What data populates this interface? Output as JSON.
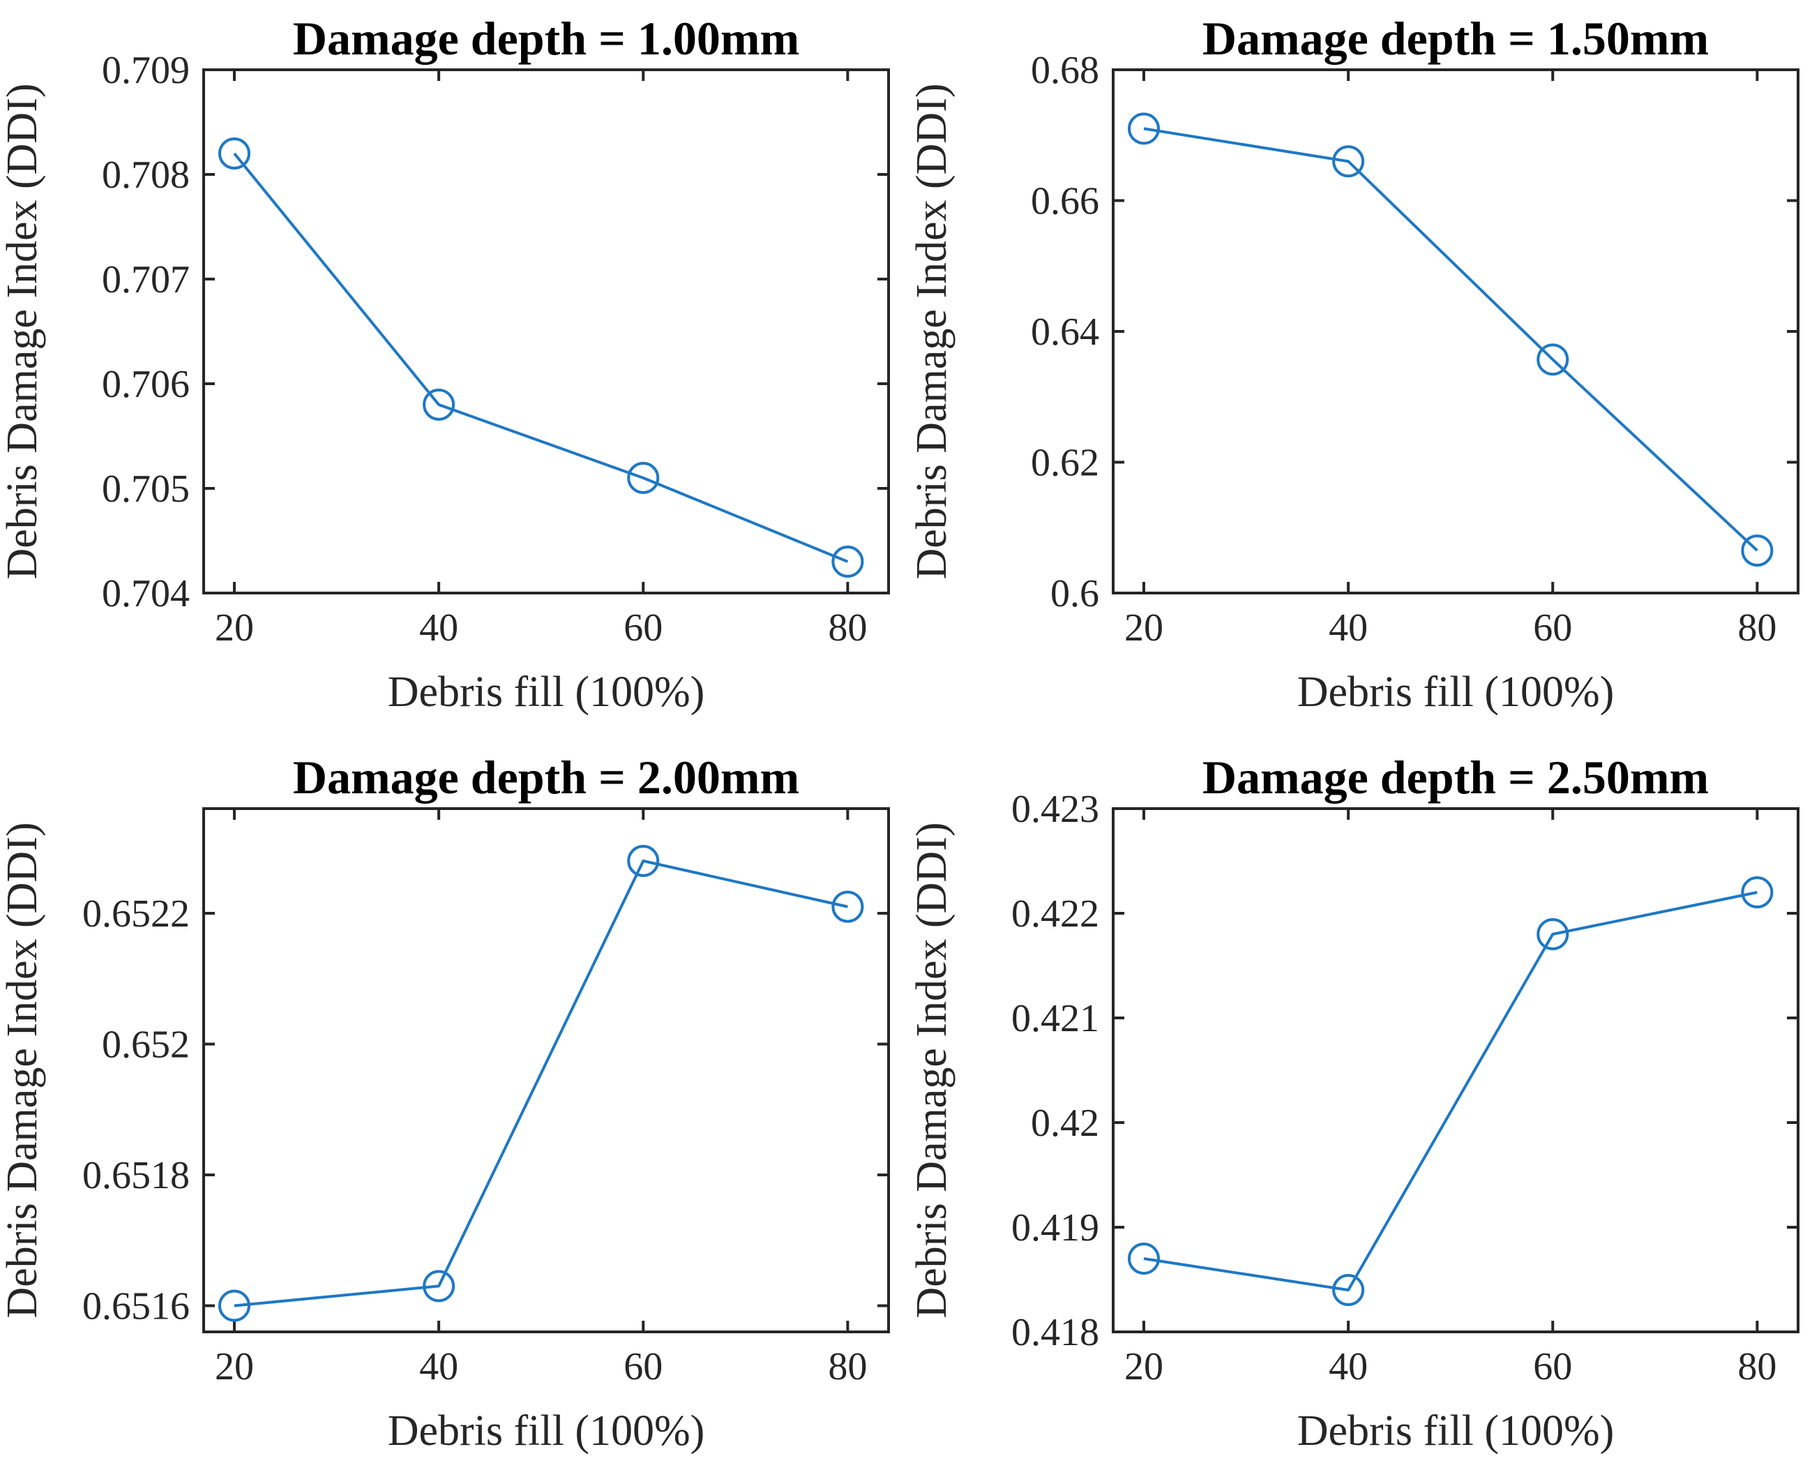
{
  "figure": {
    "background": "#ffffff",
    "axis_color": "#262626",
    "title_color": "#000000",
    "line_color": "#1E78C4"
  },
  "chart_data": [
    {
      "type": "line",
      "title": "Damage depth = 1.00mm",
      "xlabel": "Debris fill (100%)",
      "ylabel": "Debris Damage Index (DDI)",
      "x": [
        20,
        40,
        60,
        80
      ],
      "y": [
        0.7082,
        0.7058,
        0.7051,
        0.7043
      ],
      "xlim": [
        17,
        84
      ],
      "ylim": [
        0.704,
        0.709
      ],
      "xticks": [
        20,
        40,
        60,
        80
      ],
      "xtick_labels": [
        "20",
        "40",
        "60",
        "80"
      ],
      "yticks": [
        0.704,
        0.705,
        0.706,
        0.707,
        0.708,
        0.709
      ],
      "ytick_labels": [
        "0.704",
        "0.705",
        "0.706",
        "0.707",
        "0.708",
        "0.709"
      ],
      "marker": "circle",
      "grid": false,
      "legend": null
    },
    {
      "type": "line",
      "title": "Damage depth = 1.50mm",
      "xlabel": "Debris fill (100%)",
      "ylabel": "Debris Damage Index (DDI)",
      "x": [
        20,
        40,
        60,
        80
      ],
      "y": [
        0.671,
        0.666,
        0.6357,
        0.6065
      ],
      "xlim": [
        17,
        84
      ],
      "ylim": [
        0.6,
        0.68
      ],
      "xticks": [
        20,
        40,
        60,
        80
      ],
      "xtick_labels": [
        "20",
        "40",
        "60",
        "80"
      ],
      "yticks": [
        0.6,
        0.62,
        0.64,
        0.66,
        0.68
      ],
      "ytick_labels": [
        "0.6",
        "0.62",
        "0.64",
        "0.66",
        "0.68"
      ],
      "marker": "circle",
      "grid": false,
      "legend": null
    },
    {
      "type": "line",
      "title": "Damage depth = 2.00mm",
      "xlabel": "Debris fill (100%)",
      "ylabel": "Debris Damage Index (DDI)",
      "x": [
        20,
        40,
        60,
        80
      ],
      "y": [
        0.6516,
        0.65163,
        0.65228,
        0.65221
      ],
      "xlim": [
        17,
        84
      ],
      "ylim": [
        0.65156,
        0.65236
      ],
      "xticks": [
        20,
        40,
        60,
        80
      ],
      "xtick_labels": [
        "20",
        "40",
        "60",
        "80"
      ],
      "yticks": [
        0.6516,
        0.6518,
        0.652,
        0.6522
      ],
      "ytick_labels": [
        "0.6516",
        "0.6518",
        "0.652",
        "0.6522"
      ],
      "marker": "circle",
      "grid": false,
      "legend": null
    },
    {
      "type": "line",
      "title": "Damage depth = 2.50mm",
      "xlabel": "Debris fill (100%)",
      "ylabel": "Debris Damage Index (DDI)",
      "x": [
        20,
        40,
        60,
        80
      ],
      "y": [
        0.4187,
        0.4184,
        0.4218,
        0.4222
      ],
      "xlim": [
        17,
        84
      ],
      "ylim": [
        0.418,
        0.423
      ],
      "xticks": [
        20,
        40,
        60,
        80
      ],
      "xtick_labels": [
        "20",
        "40",
        "60",
        "80"
      ],
      "yticks": [
        0.418,
        0.419,
        0.42,
        0.421,
        0.422,
        0.423
      ],
      "ytick_labels": [
        "0.418",
        "0.419",
        "0.42",
        "0.421",
        "0.422",
        "0.423"
      ],
      "marker": "circle",
      "grid": false,
      "legend": null
    }
  ]
}
